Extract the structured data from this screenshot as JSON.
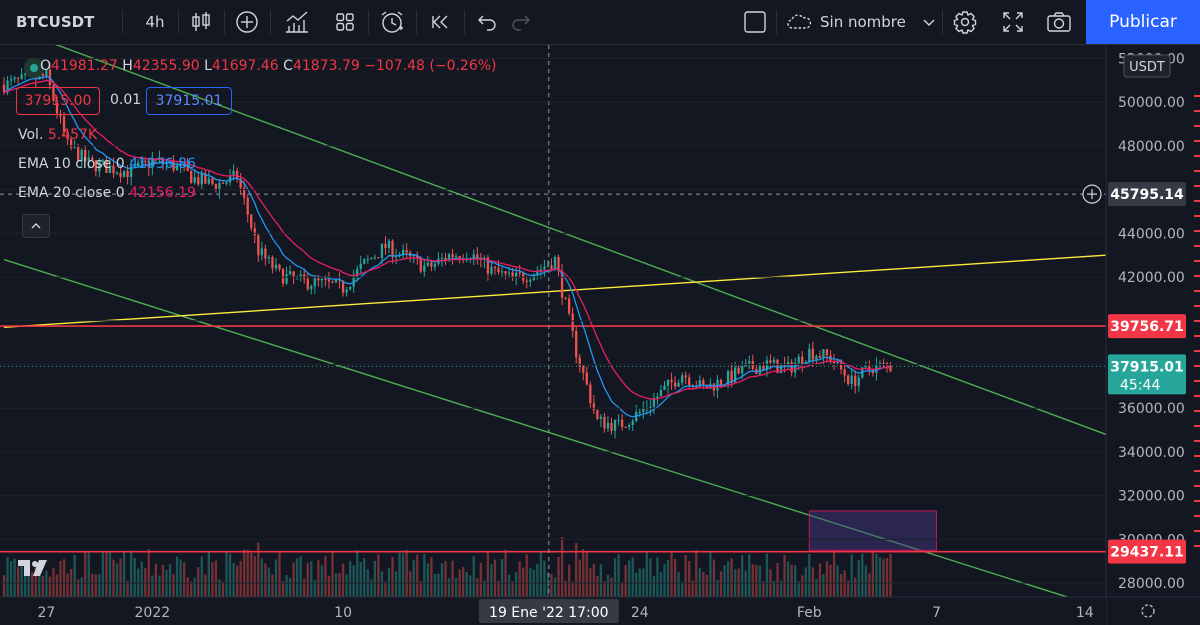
{
  "toolbar": {
    "symbol": "BTCUSDT",
    "interval": "4h",
    "layout_name": "Sin nombre",
    "publish_label": "Publicar",
    "icons": [
      "candles-icon",
      "plus-circle-icon",
      "indicators-icon",
      "templates-icon",
      "alert-clock-icon",
      "replay-icon",
      "undo-icon",
      "redo-icon",
      "fullscreen-square-icon",
      "cloud-icon",
      "chevron-down-icon",
      "settings-icon",
      "expand-icon",
      "camera-icon"
    ]
  },
  "legend": {
    "o_label": "O",
    "o": "41981.27",
    "h_label": "H",
    "h": "42355.90",
    "l_label": "L",
    "l": "41697.46",
    "c_label": "C",
    "c": "41873.79",
    "change": "−107.48 (−0.26%)",
    "sell_price": "37915.00",
    "spread": "0.01",
    "buy_price": "37915.01",
    "vol_label": "Vol.",
    "vol_value": "5.457K",
    "ema10_label": "EMA 10 close 0",
    "ema10_value": "41936.86",
    "ema20_label": "EMA 20 close 0",
    "ema20_value": "42156.19"
  },
  "colors": {
    "background": "#131722",
    "up": "#26a69a",
    "down": "#ef5350",
    "ema10": "#2196f3",
    "ema20": "#e91e63",
    "trend_green": "#4caf50",
    "trend_yellow": "#ffeb3b",
    "hline": "#f23645",
    "zone_fill": "#4a3a8a"
  },
  "chart_data": {
    "type": "candlestick",
    "symbol": "BTCUSDT",
    "timeframe": "4h",
    "currency": "USDT",
    "y_tick_labels": [
      "52000.00",
      "50000.00",
      "48000.00",
      "46000.00",
      "44000.00",
      "42000.00",
      "40000.00",
      "38000.00",
      "36000.00",
      "34000.00",
      "32000.00",
      "30000.00",
      "28000.00"
    ],
    "y_ticks": [
      52000,
      50000,
      48000,
      46000,
      44000,
      42000,
      40000,
      38000,
      36000,
      34000,
      32000,
      30000,
      28000
    ],
    "ylim": [
      27000,
      53000
    ],
    "x_tick_labels": [
      "27",
      "2022",
      "10",
      "24",
      "Feb",
      "7",
      "14"
    ],
    "crosshair_label": "19 Ene '22  17:00",
    "price_labels": {
      "crosshair": "45795.14",
      "resistance": "39756.71",
      "last": "37915.01",
      "countdown": "45:44",
      "support": "29437.11"
    },
    "close_path": [
      [
        "2021-12-25",
        50800
      ],
      [
        "2021-12-27",
        51200
      ],
      [
        "2021-12-28",
        48000
      ],
      [
        "2021-12-29",
        47200
      ],
      [
        "2021-12-31",
        46800
      ],
      [
        "2022-01-01",
        47300
      ],
      [
        "2022-01-02",
        47100
      ],
      [
        "2022-01-03",
        46500
      ],
      [
        "2022-01-04",
        46200
      ],
      [
        "2022-01-05",
        46600
      ],
      [
        "2022-01-06",
        43200
      ],
      [
        "2022-01-07",
        42100
      ],
      [
        "2022-01-08",
        41800
      ],
      [
        "2022-01-09",
        41700
      ],
      [
        "2022-01-10",
        41500
      ],
      [
        "2022-01-11",
        42600
      ],
      [
        "2022-01-12",
        43400
      ],
      [
        "2022-01-13",
        42900
      ],
      [
        "2022-01-14",
        42400
      ],
      [
        "2022-01-15",
        43000
      ],
      [
        "2022-01-16",
        43100
      ],
      [
        "2022-01-17",
        42300
      ],
      [
        "2022-01-18",
        41900
      ],
      [
        "2022-01-19",
        42200
      ],
      [
        "2022-01-20",
        42800
      ],
      [
        "2022-01-21",
        38600
      ],
      [
        "2022-01-22",
        35400
      ],
      [
        "2022-01-23",
        35200
      ],
      [
        "2022-01-24",
        35800
      ],
      [
        "2022-01-25",
        36700
      ],
      [
        "2022-01-26",
        37600
      ],
      [
        "2022-01-27",
        36900
      ],
      [
        "2022-01-28",
        37300
      ],
      [
        "2022-01-29",
        37800
      ],
      [
        "2022-01-30",
        38000
      ],
      [
        "2022-01-31",
        37800
      ],
      [
        "2022-02-01",
        38600
      ],
      [
        "2022-02-02",
        38300
      ],
      [
        "2022-02-03",
        37200
      ],
      [
        "2022-02-04",
        37900
      ]
    ],
    "ema10_last": 41936.86,
    "ema20_last": 42156.19,
    "drawings": {
      "green_channel_upper": [
        [
          "2021-12-27",
          52800
        ],
        [
          "2022-02-15",
          34800
        ]
      ],
      "green_channel_lower": [
        [
          "2021-12-25",
          42800
        ],
        [
          "2022-02-15",
          26800
        ]
      ],
      "yellow_trendline": [
        [
          "2021-12-25",
          39700
        ],
        [
          "2022-02-15",
          43000
        ]
      ],
      "horizontal_resistance": 39756.71,
      "horizontal_support": 29437.11,
      "rectangle_zone": {
        "from": "2022-02-01",
        "to": "2022-02-07",
        "low": 29500,
        "high": 31300
      }
    }
  }
}
